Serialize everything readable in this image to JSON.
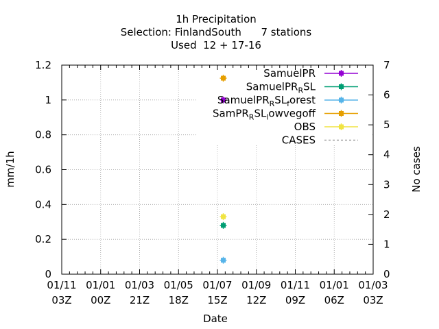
{
  "chart_data": {
    "type": "scatter",
    "title_lines": [
      "1h Precipitation",
      "Selection: FinlandSouth      7 stations",
      "Used  12 + 17-16"
    ],
    "xlabel": "Date",
    "ylabel": "mm/1h",
    "y2label": "No cases",
    "ylim": [
      0,
      1.2
    ],
    "y2lim": [
      0,
      7
    ],
    "yticks": [
      "0",
      "0.2",
      "0.4",
      "0.6",
      "0.8",
      "1",
      "1.2"
    ],
    "y2ticks": [
      "0",
      "1",
      "2",
      "3",
      "4",
      "5",
      "6",
      "7"
    ],
    "xticks": [
      {
        "line1": "01/11",
        "line2": "03Z"
      },
      {
        "line1": "01/01",
        "line2": "00Z"
      },
      {
        "line1": "01/03",
        "line2": "21Z"
      },
      {
        "line1": "01/05",
        "line2": "18Z"
      },
      {
        "line1": "01/07",
        "line2": "15Z"
      },
      {
        "line1": "01/09",
        "line2": "12Z"
      },
      {
        "line1": "01/11",
        "line2": "09Z"
      },
      {
        "line1": "01/01",
        "line2": "06Z"
      },
      {
        "line1": "01/03",
        "line2": "03Z"
      }
    ],
    "grid": true,
    "legend_position": "top-right",
    "series": [
      {
        "name": "SamuelPR",
        "label_parts": [
          [
            "SamuelPR",
            ""
          ]
        ],
        "color": "#9400d3",
        "style": "linespoints",
        "points": [
          {
            "x": 4.15,
            "y": 1.0
          }
        ]
      },
      {
        "name": "SamuelPR_RSL",
        "label_parts": [
          [
            "SamuelPR",
            ""
          ],
          [
            "R",
            "sub"
          ],
          [
            "SL",
            ""
          ]
        ],
        "color": "#009e73",
        "style": "linespoints",
        "points": [
          {
            "x": 4.15,
            "y": 0.28
          }
        ]
      },
      {
        "name": "SamuelPR_RSL_forest",
        "label_parts": [
          [
            "SamuelPR",
            ""
          ],
          [
            "R",
            "sub"
          ],
          [
            "SL",
            ""
          ],
          [
            "f",
            "sub"
          ],
          [
            "orest",
            ""
          ]
        ],
        "color": "#56b4e9",
        "style": "linespoints",
        "points": [
          {
            "x": 4.15,
            "y": 0.08
          }
        ]
      },
      {
        "name": "SamPR_RSL_lowvegoff",
        "label_parts": [
          [
            "SamPR",
            ""
          ],
          [
            "R",
            "sub"
          ],
          [
            "SL",
            ""
          ],
          [
            "l",
            "sub"
          ],
          [
            "owvegoff",
            ""
          ]
        ],
        "color": "#e69f00",
        "style": "linespoints",
        "points": [
          {
            "x": 4.15,
            "y": 1.125
          }
        ]
      },
      {
        "name": "OBS",
        "label_parts": [
          [
            "OBS",
            ""
          ]
        ],
        "color": "#f0e442",
        "style": "linespoints",
        "points": [
          {
            "x": 4.15,
            "y": 0.33
          }
        ]
      },
      {
        "name": "CASES",
        "label_parts": [
          [
            "CASES",
            ""
          ]
        ],
        "color": "#a0a0a0",
        "style": "dashed",
        "points": []
      }
    ]
  }
}
